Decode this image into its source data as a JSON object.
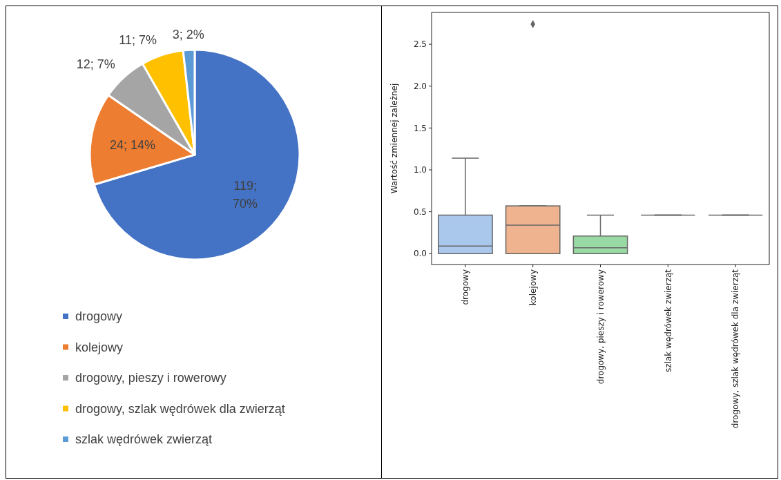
{
  "chart_data": [
    {
      "type": "pie",
      "categories": [
        "drogowy",
        "kolejowy",
        "drogowy, pieszy i rowerowy",
        "drogowy, szlak wędrówek dla zwierząt",
        "szlak wędrówek zwierząt"
      ],
      "values": [
        119,
        24,
        12,
        11,
        3
      ],
      "colors": [
        "#4472c4",
        "#ed7d31",
        "#a5a5a5",
        "#ffc000",
        "#5b9bd5"
      ],
      "value_labels": [
        "119; 70%",
        "24; 14%",
        "12; 7%",
        "11; 7%",
        "3; 2%"
      ],
      "legend": "bottom"
    },
    {
      "type": "box",
      "categories": [
        "drogowy",
        "kolejowy",
        "drogowy, pieszy i rowerowy",
        "szlak wędrówek zwierząt",
        "drogowy, szlak wędrówek dla zwierząt"
      ],
      "ylabel": "Wartość zmiennej zależnej",
      "ylim": [
        -0.13,
        2.88
      ],
      "yticks": [
        {
          "value": 0,
          "label": "0.0"
        },
        0.5,
        {
          "value": 1,
          "label": "1.0"
        },
        1.5,
        {
          "value": 2,
          "label": "2.0"
        },
        2.5
      ],
      "colors": [
        "#aac8ec",
        "#efb48f",
        "#98d9a4",
        null,
        null
      ],
      "marker": "diamond",
      "boxes": [
        {
          "low": 0,
          "q1": 0,
          "median": 0.09,
          "q3": 0.46,
          "high": 1.14
        },
        {
          "low": 0,
          "q1": 0,
          "median": 0.34,
          "q3": 0.57,
          "high": 0.57,
          "outliers": [
            2.74
          ]
        },
        {
          "low": 0,
          "q1": 0,
          "median": 0.07,
          "q3": 0.21,
          "high": 0.46
        },
        {
          "low": 0.46,
          "q1": 0.46,
          "median": 0.46,
          "q3": 0.46,
          "high": 0.46
        },
        {
          "low": 0.46,
          "q1": 0.46,
          "median": 0.46,
          "q3": 0.46,
          "high": 0.46
        }
      ]
    }
  ]
}
